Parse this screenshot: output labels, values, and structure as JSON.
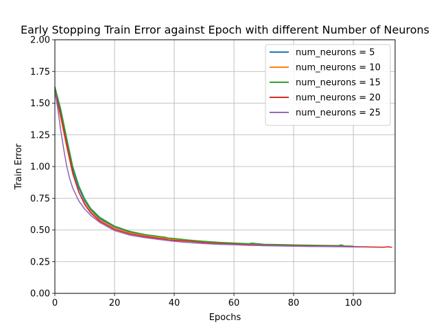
{
  "chart_data": {
    "type": "line",
    "title": "Early Stopping Train Error against Epoch with different Number of Neurons",
    "xlabel": "Epochs",
    "ylabel": "Train Error",
    "xlim": [
      0,
      114
    ],
    "ylim": [
      0,
      2.0
    ],
    "x_ticks": [
      0,
      20,
      40,
      60,
      80,
      100
    ],
    "x_tick_labels": [
      "0",
      "20",
      "40",
      "60",
      "80",
      "100"
    ],
    "y_ticks": [
      0,
      0.25,
      0.5,
      0.75,
      1.0,
      1.25,
      1.5,
      1.75,
      2.0
    ],
    "y_tick_labels": [
      "0.00",
      "0.25",
      "0.50",
      "0.75",
      "1.00",
      "1.25",
      "1.50",
      "1.75",
      "2.00"
    ],
    "grid": true,
    "legend_position": "top-right",
    "series": [
      {
        "name": "num_neurons = 5",
        "color": "#1f77b4",
        "x": [
          0,
          2,
          4,
          6,
          8,
          10,
          12,
          15,
          20,
          25,
          30,
          35,
          37,
          38,
          40,
          45,
          50,
          55,
          60,
          65,
          66,
          70,
          75,
          80,
          85,
          90,
          95,
          96,
          97,
          100
        ],
        "y": [
          1.62,
          1.42,
          1.2,
          0.98,
          0.83,
          0.73,
          0.66,
          0.59,
          0.525,
          0.485,
          0.46,
          0.445,
          0.44,
          0.432,
          0.43,
          0.418,
          0.408,
          0.4,
          0.395,
          0.39,
          0.394,
          0.385,
          0.383,
          0.38,
          0.378,
          0.376,
          0.375,
          0.38,
          0.372,
          0.37
        ]
      },
      {
        "name": "num_neurons = 10",
        "color": "#ff7f0e",
        "x": [
          0,
          2,
          4,
          6,
          8,
          10,
          12,
          15,
          20,
          25,
          30,
          35,
          37,
          38,
          40,
          45,
          50,
          55,
          60,
          65,
          70,
          75,
          80,
          85,
          90,
          95,
          100
        ],
        "y": [
          1.6,
          1.38,
          1.15,
          0.94,
          0.8,
          0.71,
          0.645,
          0.58,
          0.515,
          0.478,
          0.455,
          0.44,
          0.435,
          0.428,
          0.425,
          0.413,
          0.403,
          0.396,
          0.391,
          0.386,
          0.382,
          0.379,
          0.377,
          0.375,
          0.373,
          0.372,
          0.369
        ]
      },
      {
        "name": "num_neurons = 15",
        "color": "#2ca02c",
        "x": [
          0,
          2,
          4,
          6,
          8,
          10,
          12,
          15,
          20,
          25,
          30,
          35,
          37,
          38,
          40,
          45,
          50,
          55,
          60,
          65,
          66,
          70,
          75,
          80,
          85,
          90,
          95,
          96,
          97,
          100
        ],
        "y": [
          1.63,
          1.45,
          1.22,
          1.0,
          0.85,
          0.745,
          0.67,
          0.6,
          0.53,
          0.49,
          0.465,
          0.448,
          0.443,
          0.436,
          0.433,
          0.42,
          0.41,
          0.402,
          0.397,
          0.392,
          0.396,
          0.387,
          0.385,
          0.382,
          0.38,
          0.378,
          0.377,
          0.382,
          0.374,
          0.372
        ]
      },
      {
        "name": "num_neurons = 20",
        "color": "#d62728",
        "x": [
          0,
          2,
          4,
          6,
          8,
          10,
          12,
          15,
          20,
          25,
          30,
          35,
          37,
          38,
          40,
          45,
          50,
          55,
          60,
          65,
          70,
          75,
          80,
          85,
          90,
          95,
          100,
          105,
          110,
          112,
          113
        ],
        "y": [
          1.6,
          1.4,
          1.17,
          0.95,
          0.8,
          0.7,
          0.635,
          0.57,
          0.505,
          0.47,
          0.448,
          0.432,
          0.428,
          0.42,
          0.418,
          0.41,
          0.4,
          0.393,
          0.388,
          0.384,
          0.38,
          0.377,
          0.375,
          0.373,
          0.372,
          0.371,
          0.369,
          0.366,
          0.364,
          0.367,
          0.362
        ]
      },
      {
        "name": "num_neurons = 25",
        "color": "#9467bd",
        "x": [
          0,
          1,
          2,
          3,
          4,
          5,
          6,
          8,
          10,
          12,
          15,
          20,
          25,
          30,
          35,
          40,
          45,
          50,
          55,
          60,
          65,
          70,
          75,
          80,
          85,
          90,
          95,
          100,
          103
        ],
        "y": [
          1.6,
          1.45,
          1.28,
          1.13,
          1.0,
          0.9,
          0.83,
          0.73,
          0.665,
          0.615,
          0.56,
          0.495,
          0.46,
          0.44,
          0.425,
          0.41,
          0.4,
          0.393,
          0.387,
          0.383,
          0.379,
          0.376,
          0.374,
          0.372,
          0.37,
          0.369,
          0.368,
          0.366,
          0.365
        ]
      }
    ]
  }
}
